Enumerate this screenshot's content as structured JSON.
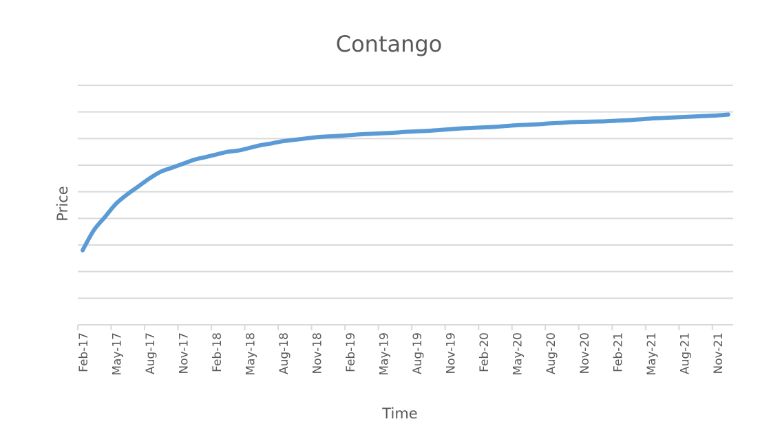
{
  "chart_data": {
    "type": "line",
    "title": "Contango",
    "xlabel": "Time",
    "ylabel": "Price",
    "grid": true,
    "legend": "none",
    "ylim": [
      0,
      9
    ],
    "categories": [
      "Feb-17",
      "Mar-17",
      "Apr-17",
      "May-17",
      "Jun-17",
      "Jul-17",
      "Aug-17",
      "Sep-17",
      "Oct-17",
      "Nov-17",
      "Dec-17",
      "Jan-18",
      "Feb-18",
      "Mar-18",
      "Apr-18",
      "May-18",
      "Jun-18",
      "Jul-18",
      "Aug-18",
      "Sep-18",
      "Oct-18",
      "Nov-18",
      "Dec-18",
      "Jan-19",
      "Feb-19",
      "Mar-19",
      "Apr-19",
      "May-19",
      "Jun-19",
      "Jul-19",
      "Aug-19",
      "Sep-19",
      "Oct-19",
      "Nov-19",
      "Dec-19",
      "Jan-20",
      "Feb-20",
      "Mar-20",
      "Apr-20",
      "May-20",
      "Jun-20",
      "Jul-20",
      "Aug-20",
      "Sep-20",
      "Oct-20",
      "Nov-20",
      "Dec-20",
      "Jan-21",
      "Feb-21",
      "Mar-21",
      "Apr-21",
      "May-21",
      "Jun-21",
      "Jul-21",
      "Aug-21",
      "Sep-21",
      "Oct-21",
      "Nov-21",
      "Dec-21"
    ],
    "tick_labels": [
      "Feb-17",
      "May-17",
      "Aug-17",
      "Nov-17",
      "Feb-18",
      "May-18",
      "Aug-18",
      "Nov-18",
      "Feb-19",
      "May-19",
      "Aug-19",
      "Nov-19",
      "Feb-20",
      "May-20",
      "Aug-20",
      "Nov-20",
      "Feb-21",
      "May-21",
      "Aug-21",
      "Nov-21"
    ],
    "series": [
      {
        "color": "#5b9bd5",
        "values": [
          2.8,
          3.55,
          4.05,
          4.55,
          4.9,
          5.2,
          5.5,
          5.75,
          5.9,
          6.05,
          6.2,
          6.3,
          6.4,
          6.5,
          6.55,
          6.65,
          6.75,
          6.82,
          6.9,
          6.95,
          7.0,
          7.05,
          7.08,
          7.1,
          7.13,
          7.16,
          7.18,
          7.2,
          7.22,
          7.25,
          7.27,
          7.29,
          7.32,
          7.35,
          7.38,
          7.4,
          7.42,
          7.44,
          7.47,
          7.5,
          7.52,
          7.54,
          7.57,
          7.59,
          7.62,
          7.63,
          7.64,
          7.65,
          7.67,
          7.69,
          7.72,
          7.75,
          7.77,
          7.79,
          7.81,
          7.83,
          7.85,
          7.87,
          7.9
        ]
      }
    ]
  }
}
